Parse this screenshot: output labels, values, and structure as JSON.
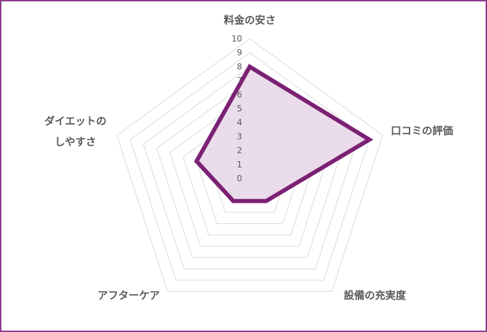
{
  "chart_data": {
    "type": "radar",
    "categories": [
      "料金の安さ",
      "口コミの評価",
      "設備の充実度",
      "アフターケア",
      "ダイエットのしやすさ"
    ],
    "category_lines": [
      [
        "料金の安さ"
      ],
      [
        "口コミの評価"
      ],
      [
        "設備の充実度"
      ],
      [
        "アフターケア"
      ],
      [
        "ダイエットの",
        "しやすさ"
      ]
    ],
    "values": [
      8,
      9,
      2,
      2,
      4
    ],
    "rlim": [
      0,
      10
    ],
    "ticks": [
      "0",
      "1",
      "2",
      "3",
      "4",
      "5",
      "6",
      "7",
      "8",
      "9",
      "10"
    ],
    "grid": true,
    "legend": "none",
    "colors": {
      "line": "#7b2175",
      "fill": "#e6d6e6",
      "grid": "#d9d9d9",
      "frame": "#8e3a8e"
    }
  }
}
